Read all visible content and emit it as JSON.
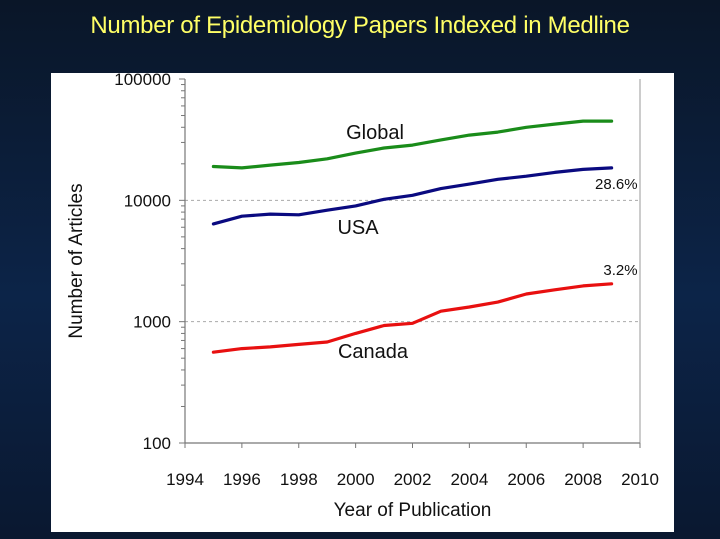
{
  "chart_data": {
    "type": "line",
    "title": "Number of Epidemiology Papers Indexed in Medline",
    "xlabel": "Year of Publication",
    "ylabel": "Number of Articles",
    "xlim": [
      1994,
      2010
    ],
    "ylim": [
      100,
      100000
    ],
    "yscale": "log",
    "x_ticks": [
      "1994",
      "1996",
      "1998",
      "2000",
      "2002",
      "2004",
      "2006",
      "2008",
      "2010"
    ],
    "y_ticks": [
      "100",
      "1000",
      "10000",
      "100000"
    ],
    "grid": "dashed horizontal at 1000 and 10000",
    "legend": "inline labels",
    "x": [
      1995,
      1996,
      1997,
      1998,
      1999,
      2000,
      2001,
      2002,
      2003,
      2004,
      2005,
      2006,
      2007,
      2008,
      2009
    ],
    "series": [
      {
        "name": "Global",
        "color": "#1a8c1a",
        "values": [
          19000,
          18500,
          19500,
          20500,
          22000,
          24500,
          27000,
          28500,
          31500,
          34500,
          36500,
          40000,
          42500,
          45000,
          45000
        ]
      },
      {
        "name": "USA",
        "color": "#0a0a80",
        "values": [
          6400,
          7400,
          7700,
          7600,
          8300,
          9000,
          10200,
          11000,
          12500,
          13600,
          14900,
          15800,
          17000,
          18000,
          18500
        ]
      },
      {
        "name": "Canada",
        "color": "#e81010",
        "values": [
          560,
          600,
          620,
          650,
          680,
          800,
          930,
          970,
          1220,
          1320,
          1450,
          1690,
          1830,
          1970,
          2050
        ]
      }
    ],
    "annotations": [
      {
        "text": "28.6%",
        "series": "USA"
      },
      {
        "text": "3.2%",
        "series": "Canada"
      }
    ]
  }
}
